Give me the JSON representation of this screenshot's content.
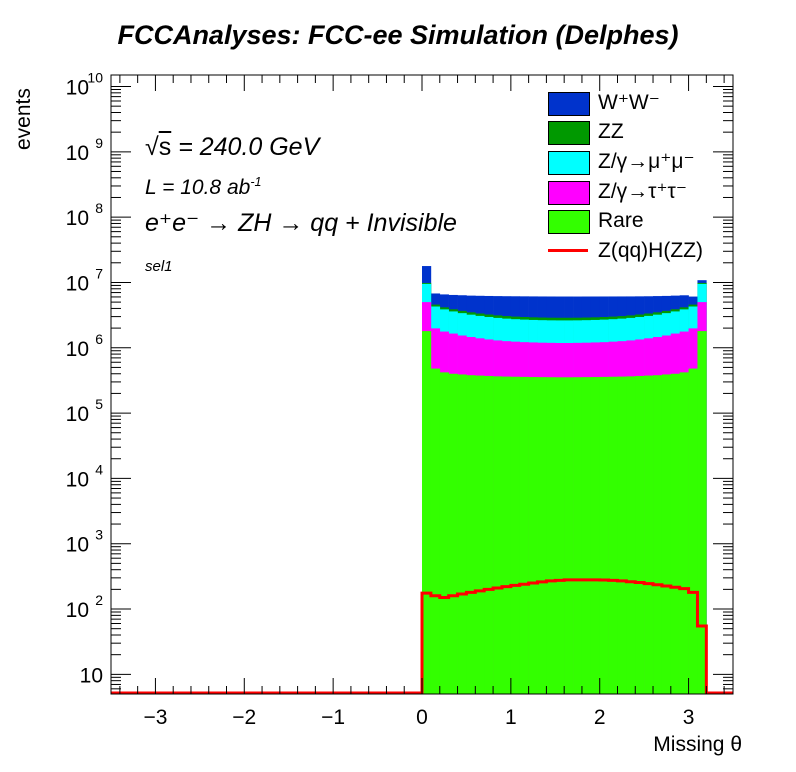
{
  "title": "FCCAnalyses: FCC-ee Simulation (Delphes)",
  "annotations": {
    "sqrt_s": "= 240.0 GeV",
    "lumi": "L = 10.8 ab",
    "lumi_exp": "-1",
    "process": "e⁺e⁻ → ZH → qq + Invisible",
    "selection": "sel1"
  },
  "chart_data": {
    "type": "bar",
    "stacked": true,
    "xlabel": "Missing θ",
    "ylabel": "events",
    "xlim": [
      -3.5,
      3.5
    ],
    "ylim": [
      5,
      15000000000
    ],
    "log_y": true,
    "xticks": [
      -3,
      -2,
      -1,
      0,
      1,
      2,
      3
    ],
    "xtick_labels": [
      "−3",
      "−2",
      "−1",
      "0",
      "1",
      "2",
      "3"
    ],
    "yticks": [
      10,
      100,
      1000,
      10000,
      100000,
      1000000,
      10000000,
      100000000,
      1000000000,
      10000000000
    ],
    "ytick_bases": [
      "10",
      "10",
      "10",
      "10",
      "10",
      "10",
      "10",
      "10",
      "10",
      "10"
    ],
    "ytick_exps": [
      "",
      "2",
      "3",
      "4",
      "5",
      "6",
      "7",
      "8",
      "9",
      "10"
    ],
    "legend_position": "top-right",
    "bin_edges": [
      0.0,
      0.1,
      0.2,
      0.3,
      0.4,
      0.5,
      0.6,
      0.7,
      0.8,
      0.9,
      1.0,
      1.1,
      1.2,
      1.3,
      1.4,
      1.5,
      1.6,
      1.7,
      1.8,
      1.9,
      2.0,
      2.1,
      2.2,
      2.3,
      2.4,
      2.5,
      2.6,
      2.7,
      2.8,
      2.9,
      3.0,
      3.1,
      3.2
    ],
    "series": [
      {
        "name": "Rare",
        "color": "#33ff00",
        "values": [
          1800000,
          480000,
          420000,
          400000,
          390000,
          380000,
          375000,
          370000,
          365000,
          362000,
          360000,
          358000,
          356000,
          355000,
          354000,
          353000,
          353000,
          354000,
          355000,
          356000,
          358000,
          360000,
          362000,
          365000,
          370000,
          375000,
          380000,
          390000,
          400000,
          420000,
          480000,
          1800000
        ]
      },
      {
        "name": "Z/γ→τ⁺τ⁻",
        "color": "#ff00ff",
        "values": [
          3200000,
          1500000,
          1350000,
          1250000,
          1150000,
          1080000,
          1020000,
          970000,
          930000,
          900000,
          880000,
          860000,
          850000,
          840000,
          835000,
          830000,
          830000,
          835000,
          840000,
          850000,
          860000,
          880000,
          900000,
          930000,
          970000,
          1020000,
          1080000,
          1150000,
          1250000,
          1350000,
          1500000,
          3200000
        ]
      },
      {
        "name": "Z/γ→μ⁺μ⁻",
        "color": "#00ffff",
        "values": [
          4500000,
          2300000,
          2100000,
          1950000,
          1850000,
          1750000,
          1680000,
          1620000,
          1570000,
          1530000,
          1500000,
          1480000,
          1460000,
          1450000,
          1440000,
          1440000,
          1440000,
          1440000,
          1450000,
          1460000,
          1480000,
          1500000,
          1530000,
          1570000,
          1620000,
          1680000,
          1750000,
          1850000,
          1950000,
          2100000,
          2300000,
          4500000
        ]
      },
      {
        "name": "ZZ",
        "color": "#009900",
        "values": [
          330000,
          300000,
          290000,
          285000,
          280000,
          275000,
          270000,
          268000,
          266000,
          264000,
          262000,
          260000,
          259000,
          258000,
          257000,
          257000,
          257000,
          257000,
          258000,
          259000,
          260000,
          262000,
          264000,
          266000,
          268000,
          270000,
          275000,
          280000,
          285000,
          290000,
          300000,
          330000
        ]
      },
      {
        "name": "W⁺W⁻",
        "color": "#0033cc",
        "values": [
          8000000,
          2200000,
          2400000,
          2550000,
          2700000,
          2800000,
          2900000,
          2980000,
          3050000,
          3100000,
          3140000,
          3170000,
          3190000,
          3200000,
          3210000,
          3210000,
          3210000,
          3200000,
          3190000,
          3170000,
          3140000,
          3100000,
          3050000,
          2980000,
          2900000,
          2800000,
          2700000,
          2550000,
          2400000,
          2200000,
          1500000,
          1000000
        ]
      }
    ],
    "signal": {
      "name": "Z(qq)H(ZZ)",
      "color": "#ff0000",
      "values": [
        175,
        160,
        150,
        160,
        170,
        180,
        190,
        200,
        210,
        220,
        230,
        240,
        250,
        260,
        270,
        275,
        280,
        280,
        280,
        280,
        278,
        275,
        270,
        262,
        255,
        245,
        235,
        225,
        215,
        205,
        180,
        55
      ]
    }
  }
}
